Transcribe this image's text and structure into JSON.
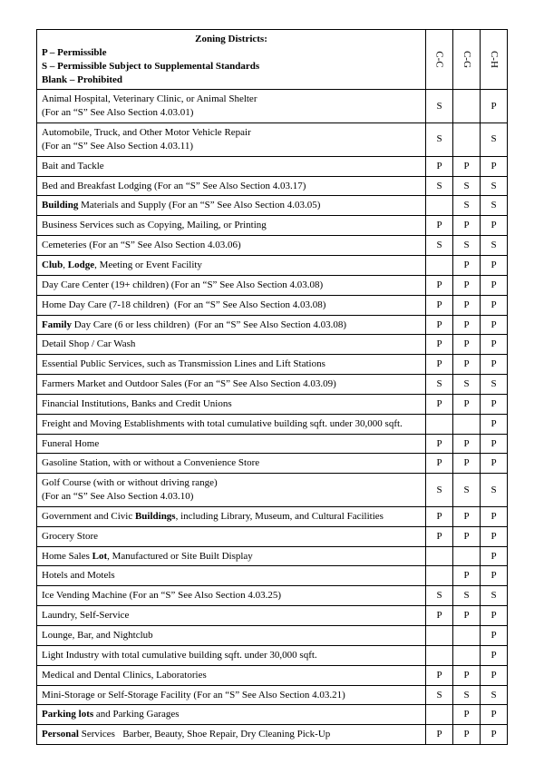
{
  "header": {
    "title": "Zoning Districts:",
    "legend_p": "P – Permissible",
    "legend_s": "S – Permissible Subject to Supplemental Standards",
    "legend_blank": "Blank – Prohibited",
    "columns": [
      "C-C",
      "C-G",
      "C-H"
    ]
  },
  "rows": [
    {
      "desc": "Animal Hospital, Veterinary Clinic, or Animal Shelter<br>(For an “S” See Also Section 4.03.01)",
      "c": [
        "S",
        "",
        "P"
      ]
    },
    {
      "desc": "Automobile, Truck, and Other Motor Vehicle Repair<br>(For an “S” See Also Section 4.03.11)",
      "c": [
        "S",
        "",
        "S"
      ]
    },
    {
      "desc": "Bait and Tackle",
      "c": [
        "P",
        "P",
        "P"
      ]
    },
    {
      "desc": "Bed and Breakfast Lodging (For an “S” See Also Section 4.03.17)",
      "c": [
        "S",
        "S",
        "S"
      ]
    },
    {
      "desc": "<b>Building</b> Materials and Supply (For an “S” See Also Section 4.03.05)",
      "c": [
        "",
        "S",
        "S"
      ]
    },
    {
      "desc": "Business Services such as Copying, Mailing, or Printing",
      "c": [
        "P",
        "P",
        "P"
      ]
    },
    {
      "desc": "Cemeteries (For an “S” See Also Section 4.03.06)",
      "c": [
        "S",
        "S",
        "S"
      ]
    },
    {
      "desc": "<b>Club</b>, <b>Lodge</b>, Meeting or Event Facility",
      "c": [
        "",
        "P",
        "P"
      ]
    },
    {
      "desc": "Day Care Center (19+ children) (For an “S” See Also Section 4.03.08)",
      "c": [
        "P",
        "P",
        "P"
      ]
    },
    {
      "desc": "Home Day Care (7-18 children)&nbsp; (For an “S” See Also Section 4.03.08)",
      "c": [
        "P",
        "P",
        "P"
      ]
    },
    {
      "desc": "<b>Family</b> Day Care (6 or less children)&nbsp; (For an “S” See Also Section 4.03.08)",
      "c": [
        "P",
        "P",
        "P"
      ]
    },
    {
      "desc": "Detail Shop / Car Wash",
      "c": [
        "P",
        "P",
        "P"
      ]
    },
    {
      "desc": "Essential Public Services, such as Transmission Lines and Lift Stations",
      "c": [
        "P",
        "P",
        "P"
      ]
    },
    {
      "desc": "Farmers Market and Outdoor Sales (For an “S” See Also Section 4.03.09)",
      "c": [
        "S",
        "S",
        "S"
      ]
    },
    {
      "desc": "Financial Institutions, Banks and Credit Unions",
      "c": [
        "P",
        "P",
        "P"
      ]
    },
    {
      "desc": "Freight and Moving Establishments with total cumulative building sqft. under 30,000 sqft.",
      "c": [
        "",
        "",
        "P"
      ]
    },
    {
      "desc": "Funeral Home",
      "c": [
        "P",
        "P",
        "P"
      ]
    },
    {
      "desc": "Gasoline Station, with or without a Convenience Store",
      "c": [
        "P",
        "P",
        "P"
      ]
    },
    {
      "desc": "Golf Course (with or without driving range)<br>(For an “S” See Also Section 4.03.10)",
      "c": [
        "S",
        "S",
        "S"
      ]
    },
    {
      "desc": "Government and Civic <b>Buildings</b>, including Library, Museum, and Cultural Facilities",
      "c": [
        "P",
        "P",
        "P"
      ]
    },
    {
      "desc": "Grocery Store",
      "c": [
        "P",
        "P",
        "P"
      ]
    },
    {
      "desc": "Home Sales <b>Lot</b>, Manufactured or Site Built Display",
      "c": [
        "",
        "",
        "P"
      ]
    },
    {
      "desc": "Hotels and Motels",
      "c": [
        "",
        "P",
        "P"
      ]
    },
    {
      "desc": "Ice Vending Machine (For an “S” See Also Section 4.03.25)",
      "c": [
        "S",
        "S",
        "S"
      ]
    },
    {
      "desc": "Laundry, Self-Service",
      "c": [
        "P",
        "P",
        "P"
      ]
    },
    {
      "desc": "Lounge, Bar, and Nightclub",
      "c": [
        "",
        "",
        "P"
      ]
    },
    {
      "desc": "Light Industry with total cumulative building sqft. under 30,000 sqft.",
      "c": [
        "",
        "",
        "P"
      ]
    },
    {
      "desc": "Medical and Dental Clinics, Laboratories",
      "c": [
        "P",
        "P",
        "P"
      ]
    },
    {
      "desc": "Mini-Storage or Self-Storage Facility (For an “S” See Also Section 4.03.21)",
      "c": [
        "S",
        "S",
        "S"
      ]
    },
    {
      "desc": "<b>Parking lots</b> and Parking Garages",
      "c": [
        "",
        "P",
        "P"
      ]
    },
    {
      "desc": "<b>Personal</b> Services&nbsp;&nbsp; Barber, Beauty, Shoe Repair, Dry Cleaning Pick-Up",
      "c": [
        "P",
        "P",
        "P"
      ]
    }
  ]
}
